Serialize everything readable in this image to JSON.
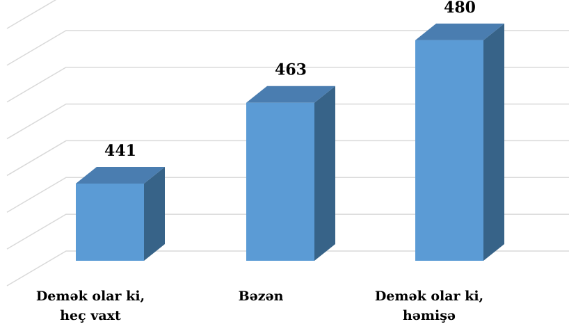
{
  "chart_data": {
    "type": "bar3d",
    "categories": [
      "Demək olar ki, heç vaxt",
      "Bəzən",
      "Demək olar ki, həmişə"
    ],
    "values": [
      441,
      463,
      480
    ],
    "color": "#5b9bd5",
    "ylim": [
      420,
      490
    ],
    "yticks": [
      420,
      430,
      440,
      450,
      460,
      470,
      480,
      490
    ],
    "grid": true
  }
}
